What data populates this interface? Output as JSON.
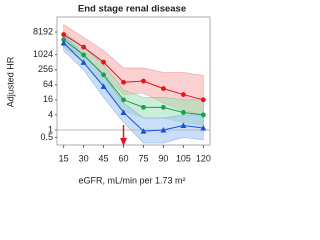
{
  "chart_data": {
    "type": "line",
    "title": "End stage renal disease",
    "ylabel": "Adjusted HR",
    "xlabel": "eGFR, mL/min per 1.73 m²",
    "log_scale_y": true,
    "log_base": 2,
    "x": [
      15,
      30,
      45,
      60,
      75,
      90,
      105,
      120
    ],
    "xlim": [
      10,
      125
    ],
    "xticks": [
      15,
      30,
      45,
      60,
      75,
      90,
      105,
      120
    ],
    "ylim": [
      0.25,
      32768
    ],
    "yticks": [
      0.5,
      1,
      4,
      16,
      64,
      256,
      1024,
      8192
    ],
    "reference_line": 1,
    "marker_x": 60,
    "marker_color": "#e8141c",
    "series": [
      {
        "color": "#e8141c",
        "band_color": "#f6a9ac",
        "marker": "circle",
        "values": [
          6500,
          2048,
          512,
          80,
          90,
          45,
          26,
          16
        ],
        "upper": [
          16384,
          5000,
          1500,
          300,
          300,
          200,
          200,
          150
        ],
        "lower": [
          2500,
          800,
          180,
          25,
          30,
          12,
          6,
          4
        ]
      },
      {
        "color": "#1a9e50",
        "band_color": "#9fe0b4",
        "marker": "circle",
        "values": [
          4096,
          1000,
          160,
          16,
          8,
          8,
          5,
          4
        ],
        "upper": [
          8192,
          2048,
          400,
          40,
          20,
          20,
          16,
          16
        ],
        "lower": [
          2048,
          500,
          64,
          6,
          3,
          3,
          2,
          1.5
        ]
      },
      {
        "color": "#1552d6",
        "band_color": "#9cc3f2",
        "marker": "triangle",
        "values": [
          3000,
          500,
          55,
          5,
          0.9,
          1,
          1.5,
          1.2
        ],
        "upper": [
          6000,
          1000,
          150,
          12,
          3,
          3,
          4,
          4
        ],
        "lower": [
          1500,
          250,
          20,
          2,
          0.3,
          0.3,
          0.5,
          0.4
        ]
      }
    ]
  }
}
